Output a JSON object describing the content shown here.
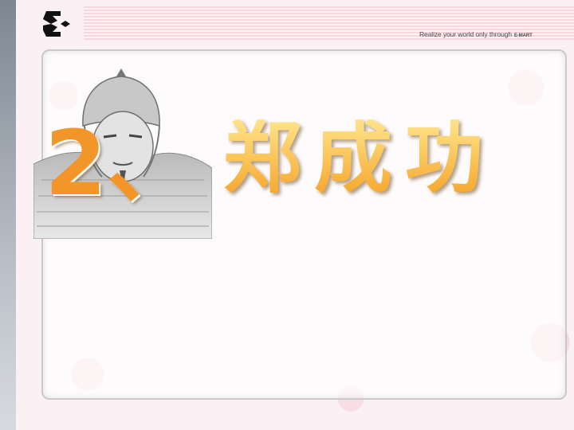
{
  "header": {
    "tagline": "Realize your world only through",
    "brand": "E-MART"
  },
  "slide": {
    "number": "2、",
    "title": "郑成功"
  },
  "icons": {
    "logo": "company-logo-icon",
    "portrait": "warrior-portrait"
  },
  "colors": {
    "title_fill": "#f6b532",
    "number_fill": "#f2962a",
    "background": "#fbf0f3"
  }
}
